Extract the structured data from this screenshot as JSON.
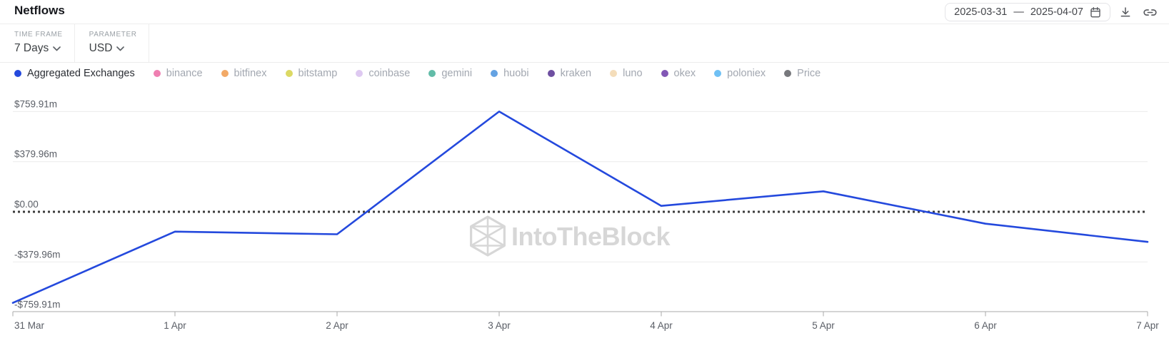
{
  "header": {
    "title": "Netflows",
    "date_range": {
      "start": "2025-03-31",
      "separator": "—",
      "end": "2025-04-07"
    },
    "icons": {
      "date_picker": "calendar",
      "export": "download",
      "share": "link"
    }
  },
  "toolbar": {
    "time_frame_label": "TIME FRAME",
    "time_frame_value": "7 Days",
    "parameter_label": "PARAMETER",
    "parameter_value": "USD",
    "dropdown_icon": "chevron-down"
  },
  "legend": {
    "items": [
      {
        "label": "Aggregated Exchanges",
        "color": "#2449dd",
        "active": true
      },
      {
        "label": "binance",
        "color": "#ef7fb1",
        "active": false
      },
      {
        "label": "bitfinex",
        "color": "#f2a966",
        "active": false
      },
      {
        "label": "bitstamp",
        "color": "#dcd964",
        "active": false
      },
      {
        "label": "coinbase",
        "color": "#dec9f1",
        "active": false
      },
      {
        "label": "gemini",
        "color": "#62bca8",
        "active": false
      },
      {
        "label": "huobi",
        "color": "#64a2e2",
        "active": false
      },
      {
        "label": "kraken",
        "color": "#6e4fa1",
        "active": false
      },
      {
        "label": "luno",
        "color": "#f4ddba",
        "active": false
      },
      {
        "label": "okex",
        "color": "#8257b5",
        "active": false
      },
      {
        "label": "poloniex",
        "color": "#6fc0f4",
        "active": false
      },
      {
        "label": "Price",
        "color": "#77787c",
        "active": false
      }
    ]
  },
  "watermark": {
    "text": "IntoTheBlock",
    "color": "#d7d7d7"
  },
  "chart_data": {
    "type": "line",
    "title": "Netflows (Aggregated Exchanges, USD, 7 Days)",
    "x_labels": [
      "31 Mar",
      "1 Apr",
      "2 Apr",
      "3 Apr",
      "4 Apr",
      "5 Apr",
      "6 Apr",
      "7 Apr"
    ],
    "series": [
      {
        "name": "Aggregated Exchanges",
        "color": "#2449dd",
        "unit": "USD millions",
        "values": [
          -690,
          -150,
          -170,
          759.91,
          45,
          155,
          -90,
          -228
        ]
      }
    ],
    "ytick_labels": [
      "$759.91m",
      "$379.96m",
      "$0.00",
      "-$379.96m",
      "-$759.91m"
    ],
    "ytick_values": [
      759.91,
      379.96,
      0,
      -379.96,
      -759.91
    ],
    "ylim": [
      -759.91,
      759.91
    ],
    "zero_line_style": "dotted",
    "grid": "horizontal",
    "legend_position": "top",
    "colors": {
      "grid": "#ececec",
      "zero_line": "#3b3b3b",
      "axis": "#a8a8a8",
      "tick_text": "#5a5e66"
    }
  }
}
